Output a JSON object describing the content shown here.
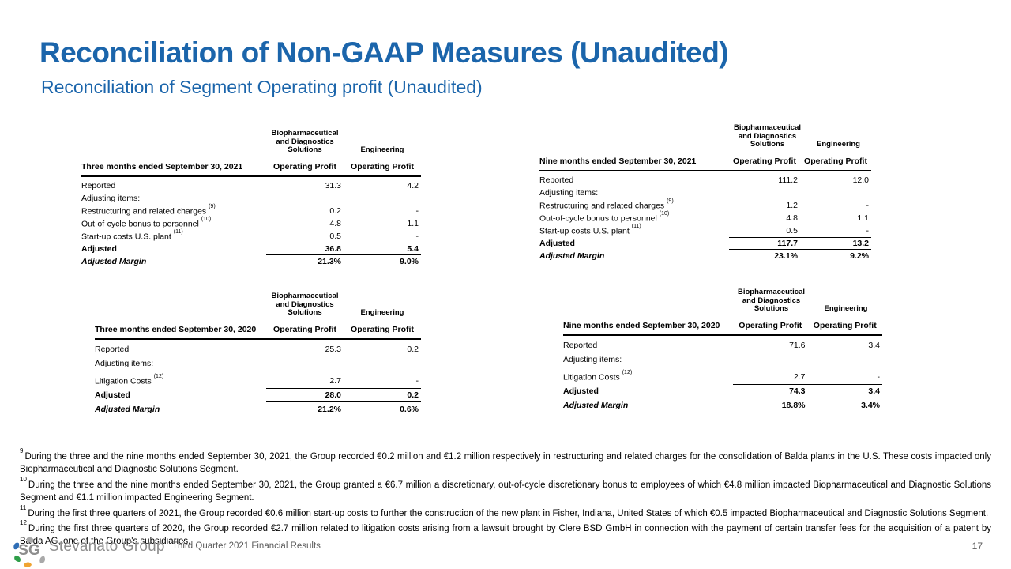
{
  "slide": {
    "title": "Reconciliation of Non-GAAP Measures (Unaudited)",
    "subtitle": "Reconciliation of Segment Operating profit (Unaudited)"
  },
  "colors": {
    "accent_blue": "#1b65ab",
    "footer_gray": "#5a5a5a",
    "logo_gray": "#8d8d8d",
    "logo_blue": "#2f6eb6",
    "logo_green": "#2f9e49",
    "logo_orange": "#f0a432"
  },
  "columns": {
    "bds": "Biopharmaceutical and Diagnostics Solutions",
    "engineering": "Engineering",
    "operating_profit": "Operating Profit"
  },
  "tables": [
    {
      "period_label": "Three months ended September 30, 2021",
      "rows": [
        {
          "type": "data",
          "label": "Reported",
          "values": [
            "31.3",
            "4.2"
          ]
        },
        {
          "type": "section",
          "label": "Adjusting items:",
          "values": [
            "",
            ""
          ]
        },
        {
          "type": "data",
          "label": "Restructuring and related charges",
          "sup": "(9)",
          "values": [
            "0.2",
            "-"
          ]
        },
        {
          "type": "data",
          "label": "Out-of-cycle bonus to personnel",
          "sup": "(10)",
          "values": [
            "4.8",
            "1.1"
          ]
        },
        {
          "type": "data",
          "label": "Start-up costs U.S. plant",
          "sup": "(11)",
          "values": [
            "0.5",
            "-"
          ]
        },
        {
          "type": "total",
          "label": "Adjusted",
          "values": [
            "36.8",
            "5.4"
          ]
        },
        {
          "type": "margin",
          "label": "Adjusted Margin",
          "values": [
            "21.3%",
            "9.0%"
          ]
        }
      ]
    },
    {
      "period_label": "Nine months ended September 30, 2021",
      "rows": [
        {
          "type": "data",
          "label": "Reported",
          "values": [
            "111.2",
            "12.0"
          ]
        },
        {
          "type": "section",
          "label": "Adjusting items:",
          "values": [
            "",
            ""
          ]
        },
        {
          "type": "data",
          "label": "Restructuring and related charges",
          "sup": "(9)",
          "values": [
            "1.2",
            "-"
          ]
        },
        {
          "type": "data",
          "label": "Out-of-cycle bonus to personnel",
          "sup": "(10)",
          "values": [
            "4.8",
            "1.1"
          ]
        },
        {
          "type": "data",
          "label": "Start-up costs U.S. plant",
          "sup": "(11)",
          "values": [
            "0.5",
            "-"
          ]
        },
        {
          "type": "total",
          "label": "Adjusted",
          "values": [
            "117.7",
            "13.2"
          ]
        },
        {
          "type": "margin",
          "label": "Adjusted Margin",
          "values": [
            "23.1%",
            "9.2%"
          ]
        }
      ]
    },
    {
      "period_label": "Three months ended September 30, 2020",
      "rows": [
        {
          "type": "data",
          "label": "Reported",
          "values": [
            "25.3",
            "0.2"
          ]
        },
        {
          "type": "section",
          "label": "Adjusting items:",
          "values": [
            "",
            ""
          ]
        },
        {
          "type": "data",
          "label": "Litigation Costs",
          "sup": "(12)",
          "values": [
            "2.7",
            "-"
          ]
        },
        {
          "type": "total",
          "label": "Adjusted",
          "values": [
            "28.0",
            "0.2"
          ]
        },
        {
          "type": "margin",
          "label": "Adjusted Margin",
          "values": [
            "21.2%",
            "0.6%"
          ]
        }
      ]
    },
    {
      "period_label": "Nine months ended September 30, 2020",
      "rows": [
        {
          "type": "data",
          "label": "Reported",
          "values": [
            "71.6",
            "3.4"
          ]
        },
        {
          "type": "section",
          "label": "Adjusting items:",
          "values": [
            "",
            ""
          ]
        },
        {
          "type": "data",
          "label": "Litigation Costs",
          "sup": "(12)",
          "values": [
            "2.7",
            "-"
          ]
        },
        {
          "type": "total",
          "label": "Adjusted",
          "values": [
            "74.3",
            "3.4"
          ]
        },
        {
          "type": "margin",
          "label": "Adjusted Margin",
          "values": [
            "18.8%",
            "3.4%"
          ]
        }
      ]
    }
  ],
  "footnotes": [
    {
      "marker": "9",
      "text": "During the three and the nine months ended September 30, 2021, the Group recorded €0.2 million and €1.2 million respectively in restructuring and related charges for the consolidation of Balda plants in the U.S. These costs impacted only Biopharmaceutical and Diagnostic Solutions Segment."
    },
    {
      "marker": "10",
      "text": "During the three and the nine months ended September 30, 2021, the Group granted a €6.7 million a discretionary, out-of-cycle discretionary bonus to employees of which €4.8 million impacted Biopharmaceutical and Diagnostic Solutions Segment and €1.1 million impacted Engineering Segment."
    },
    {
      "marker": "11",
      "text": "During the first three quarters of 2021, the Group recorded €0.6 million start-up costs to further the construction of the new plant in Fisher, Indiana, United States of which €0.5 impacted Biopharmaceutical and Diagnostic Solutions Segment."
    },
    {
      "marker": "12",
      "text": "During the first three quarters of 2020, the Group recorded €2.7 million related to litigation costs arising from a lawsuit brought by Clere BSD GmbH in connection with the payment of certain transfer fees for the acquisition of a patent by Balda AG, one of the Group's subsidiaries."
    }
  ],
  "footer": {
    "company": "Stevanato Group",
    "caption": "Third Quarter 2021 Financial Results",
    "page_number": "17"
  }
}
